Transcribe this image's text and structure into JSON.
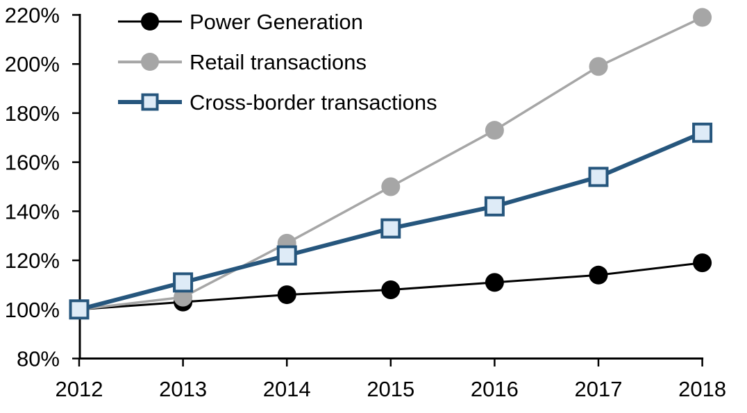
{
  "chart_data": {
    "type": "line",
    "title": "",
    "xlabel": "",
    "ylabel": "",
    "categories": [
      "2012",
      "2013",
      "2014",
      "2015",
      "2016",
      "2017",
      "2018"
    ],
    "series": [
      {
        "name": "Power Generation",
        "values": [
          100,
          103,
          106,
          108,
          111,
          114,
          119
        ],
        "line_color": "#000000",
        "line_width": 3,
        "marker": "circle",
        "marker_fill": "#000000",
        "marker_stroke": "#000000"
      },
      {
        "name": "Retail transactions",
        "values": [
          100,
          105,
          127,
          150,
          173,
          199,
          219
        ],
        "line_color": "#a6a6a6",
        "line_width": 3.5,
        "marker": "circle",
        "marker_fill": "#a6a6a6",
        "marker_stroke": "#a6a6a6"
      },
      {
        "name": "Cross-border transactions",
        "values": [
          100,
          111,
          122,
          133,
          142,
          154,
          172
        ],
        "line_color": "#26567d",
        "line_width": 6,
        "marker": "square",
        "marker_fill": "#deebf7",
        "marker_stroke": "#26567d"
      }
    ],
    "ylim": [
      80,
      220
    ],
    "ytick_step": 20,
    "ytick_suffix": "%",
    "y_tick_labels": [
      "80%",
      "100%",
      "120%",
      "140%",
      "160%",
      "180%",
      "200%",
      "220%"
    ],
    "grid": false,
    "legend_position": "top-left",
    "axis_color": "#000000"
  }
}
